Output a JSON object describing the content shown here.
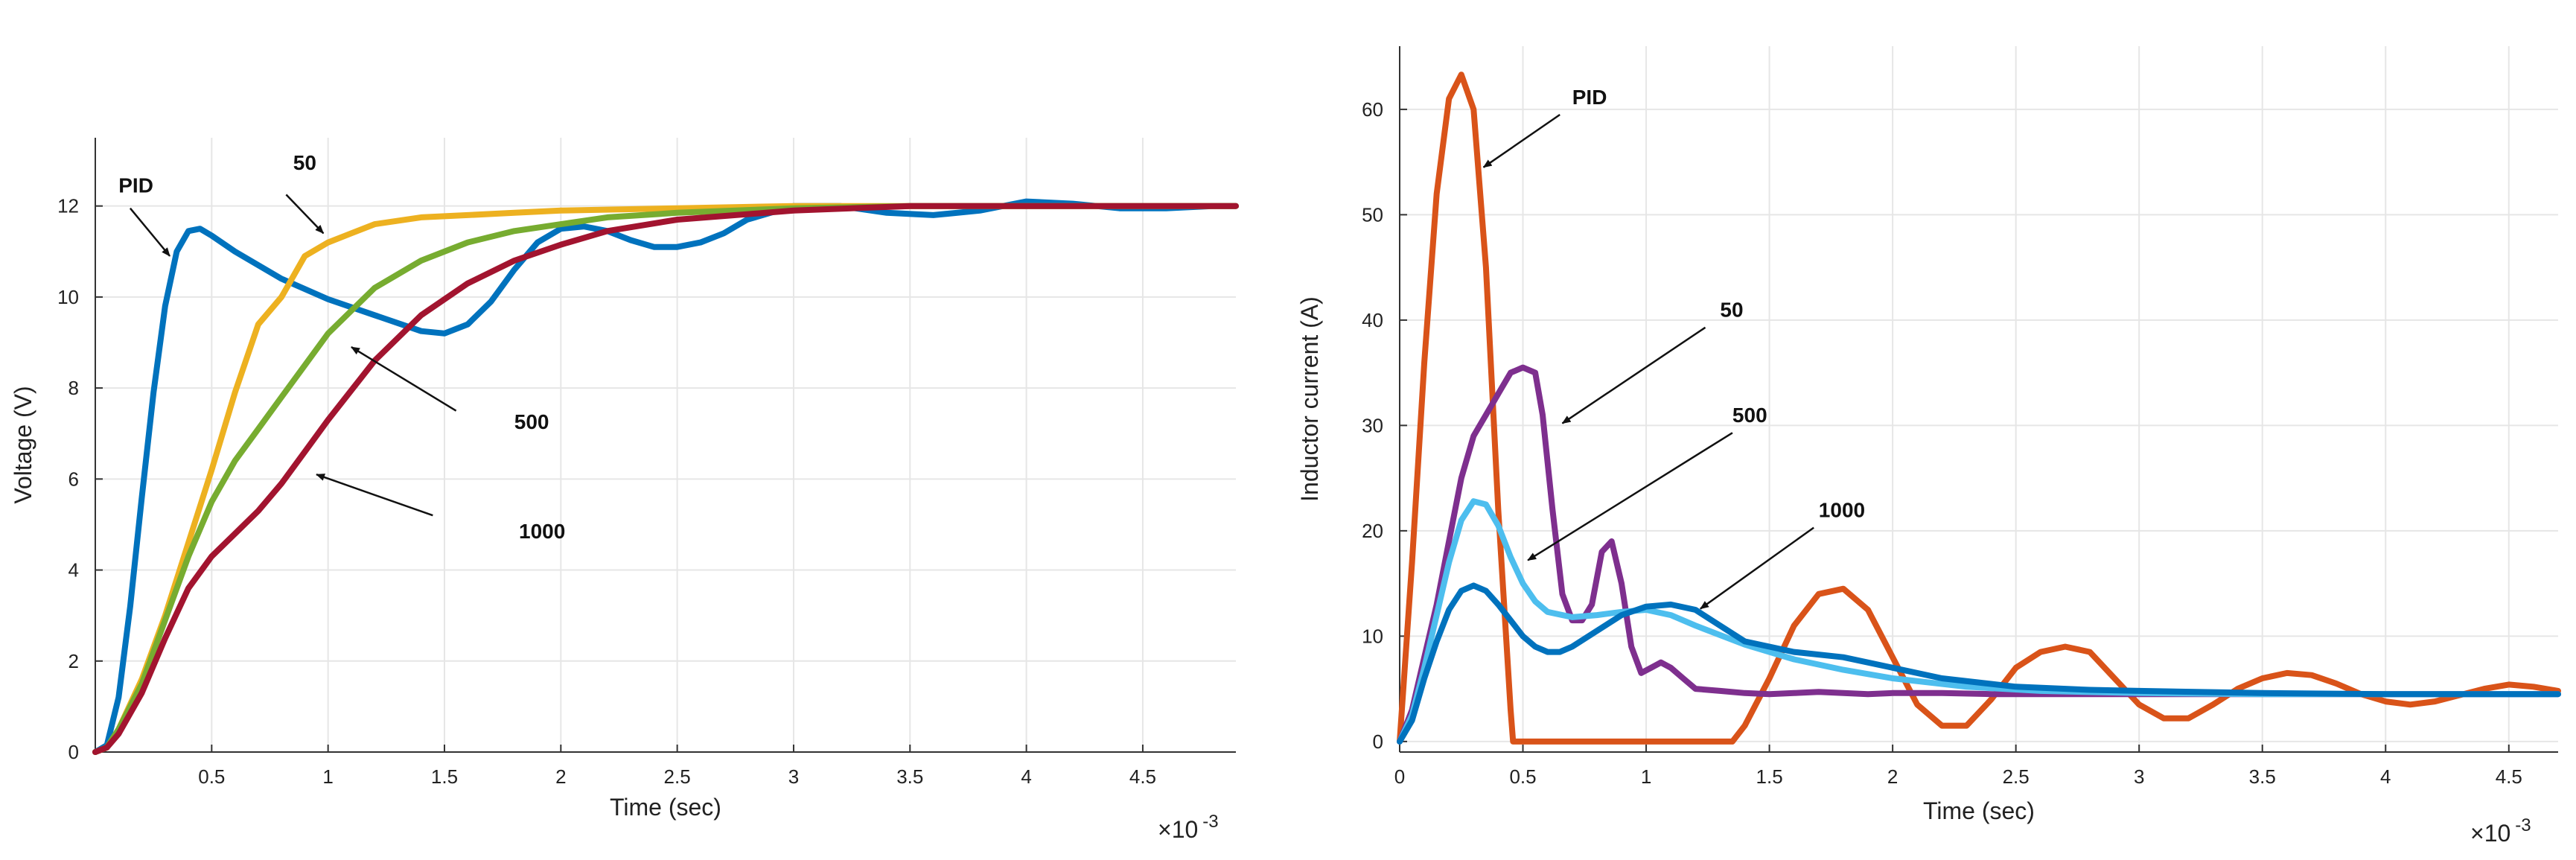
{
  "chart_data": [
    {
      "type": "line",
      "title": "",
      "xlabel": "Time (sec)",
      "ylabel": "Voltage (V)",
      "x_multiplier": "×10 -3",
      "xlim": [
        0,
        4.9
      ],
      "ylim": [
        0,
        13.5
      ],
      "xticks": [
        0.5,
        1,
        1.5,
        2,
        2.5,
        3,
        3.5,
        4,
        4.5
      ],
      "xtick_labels": [
        "0.5",
        "1",
        "1.5",
        "2",
        "2.5",
        "3",
        "3.5",
        "4",
        "4.5"
      ],
      "yticks": [
        0,
        2,
        4,
        6,
        8,
        10,
        12
      ],
      "ytick_labels": [
        "0",
        "2",
        "4",
        "6",
        "8",
        "10",
        "12"
      ],
      "grid": true,
      "series": [
        {
          "name": "PID",
          "color": "#0072BD",
          "x": [
            0,
            0.05,
            0.1,
            0.15,
            0.2,
            0.25,
            0.3,
            0.35,
            0.4,
            0.45,
            0.5,
            0.6,
            0.8,
            1.0,
            1.2,
            1.4,
            1.5,
            1.6,
            1.7,
            1.8,
            1.9,
            2.0,
            2.1,
            2.2,
            2.3,
            2.4,
            2.5,
            2.6,
            2.7,
            2.8,
            3.0,
            3.2,
            3.4,
            3.6,
            3.8,
            4.0,
            4.2,
            4.4,
            4.6,
            4.8,
            4.9
          ],
          "y": [
            0,
            0.15,
            1.2,
            3.2,
            5.6,
            7.9,
            9.8,
            11.0,
            11.45,
            11.5,
            11.35,
            11.0,
            10.4,
            9.95,
            9.6,
            9.25,
            9.2,
            9.4,
            9.9,
            10.6,
            11.2,
            11.5,
            11.55,
            11.45,
            11.25,
            11.1,
            11.1,
            11.2,
            11.4,
            11.7,
            12.0,
            12.0,
            11.85,
            11.8,
            11.9,
            12.1,
            12.05,
            11.95,
            11.95,
            12.0,
            12.0
          ]
        },
        {
          "name": "50",
          "color": "#EDB120",
          "x": [
            0,
            0.05,
            0.1,
            0.2,
            0.3,
            0.4,
            0.5,
            0.6,
            0.7,
            0.8,
            0.9,
            1.0,
            1.1,
            1.2,
            1.4,
            1.6,
            1.8,
            2.0,
            2.5,
            3.0,
            3.5,
            4.0,
            4.5,
            4.9
          ],
          "y": [
            0,
            0.1,
            0.5,
            1.6,
            3.0,
            4.6,
            6.2,
            7.9,
            9.4,
            10.0,
            10.9,
            11.2,
            11.4,
            11.6,
            11.75,
            11.8,
            11.85,
            11.9,
            11.95,
            12.0,
            12.0,
            12.0,
            12.0,
            12.0
          ]
        },
        {
          "name": "500",
          "color": "#77AC30",
          "x": [
            0,
            0.05,
            0.1,
            0.2,
            0.3,
            0.4,
            0.5,
            0.6,
            0.7,
            0.8,
            0.9,
            1.0,
            1.2,
            1.4,
            1.6,
            1.8,
            2.0,
            2.2,
            2.5,
            3.0,
            3.5,
            4.0,
            4.5,
            4.9
          ],
          "y": [
            0,
            0.1,
            0.5,
            1.5,
            2.9,
            4.3,
            5.5,
            6.4,
            7.1,
            7.8,
            8.5,
            9.2,
            10.2,
            10.8,
            11.2,
            11.45,
            11.6,
            11.75,
            11.85,
            11.95,
            12.0,
            12.0,
            12.0,
            12.0
          ]
        },
        {
          "name": "1000",
          "color": "#A2142F",
          "x": [
            0,
            0.05,
            0.1,
            0.2,
            0.3,
            0.4,
            0.5,
            0.6,
            0.7,
            0.8,
            0.9,
            1.0,
            1.2,
            1.4,
            1.6,
            1.8,
            2.0,
            2.2,
            2.5,
            3.0,
            3.5,
            4.0,
            4.5,
            4.9
          ],
          "y": [
            0,
            0.1,
            0.4,
            1.3,
            2.5,
            3.6,
            4.3,
            4.8,
            5.3,
            5.9,
            6.6,
            7.3,
            8.6,
            9.6,
            10.3,
            10.8,
            11.15,
            11.45,
            11.7,
            11.9,
            12.0,
            12.0,
            12.0,
            12.0
          ]
        }
      ],
      "annotations": [
        {
          "text": "PID",
          "x": 0.1,
          "y": 12.3,
          "arrow_to": [
            0.32,
            10.9
          ]
        },
        {
          "text": "50",
          "x": 0.85,
          "y": 12.8,
          "arrow_from": [
            0.82,
            12.25
          ],
          "arrow_to": [
            0.98,
            11.4
          ]
        },
        {
          "text": "500",
          "x": 1.8,
          "y": 7.1,
          "arrow_from": [
            1.55,
            7.5
          ],
          "arrow_to": [
            1.1,
            8.9
          ]
        },
        {
          "text": "1000",
          "x": 1.82,
          "y": 4.7,
          "arrow_from": [
            1.45,
            5.2
          ],
          "arrow_to": [
            0.95,
            6.1
          ]
        }
      ]
    },
    {
      "type": "line",
      "title": "",
      "xlabel": "Time (sec)",
      "ylabel": "Inductor current (A)",
      "x_multiplier": "×10 -3",
      "xlim": [
        0,
        4.7
      ],
      "ylim": [
        -1,
        66
      ],
      "xticks": [
        0,
        0.5,
        1,
        1.5,
        2,
        2.5,
        3,
        3.5,
        4,
        4.5
      ],
      "xtick_labels": [
        "0",
        "0.5",
        "1",
        "1.5",
        "2",
        "2.5",
        "3",
        "3.5",
        "4",
        "4.5"
      ],
      "yticks": [
        0,
        10,
        20,
        30,
        40,
        50,
        60
      ],
      "ytick_labels": [
        "0",
        "10",
        "20",
        "30",
        "40",
        "50",
        "60"
      ],
      "grid": true,
      "series": [
        {
          "name": "PID",
          "color": "#D95319",
          "x": [
            0,
            0.05,
            0.1,
            0.15,
            0.2,
            0.25,
            0.3,
            0.35,
            0.4,
            0.45,
            0.46,
            0.6,
            0.8,
            1.0,
            1.2,
            1.35,
            1.4,
            1.5,
            1.6,
            1.7,
            1.8,
            1.9,
            2.0,
            2.1,
            2.2,
            2.3,
            2.4,
            2.5,
            2.6,
            2.7,
            2.8,
            2.9,
            3.0,
            3.1,
            3.2,
            3.3,
            3.4,
            3.5,
            3.6,
            3.7,
            3.8,
            3.9,
            4.0,
            4.1,
            4.2,
            4.3,
            4.4,
            4.5,
            4.6,
            4.7
          ],
          "y": [
            0,
            17,
            36,
            52,
            61,
            63.3,
            60,
            45,
            22,
            3,
            0,
            0,
            0,
            0,
            0,
            0,
            1.5,
            6,
            11,
            14,
            14.5,
            12.5,
            8,
            3.5,
            1.5,
            1.5,
            4,
            7,
            8.5,
            9,
            8.5,
            6,
            3.5,
            2.2,
            2.2,
            3.5,
            5,
            6,
            6.5,
            6.3,
            5.5,
            4.5,
            3.8,
            3.5,
            3.8,
            4.4,
            5,
            5.4,
            5.2,
            4.8
          ]
        },
        {
          "name": "50",
          "color": "#7E2F8E",
          "x": [
            0,
            0.05,
            0.1,
            0.15,
            0.2,
            0.25,
            0.3,
            0.35,
            0.4,
            0.45,
            0.5,
            0.55,
            0.58,
            0.62,
            0.66,
            0.7,
            0.74,
            0.78,
            0.82,
            0.86,
            0.9,
            0.94,
            0.98,
            1.02,
            1.06,
            1.1,
            1.15,
            1.2,
            1.3,
            1.4,
            1.5,
            1.6,
            1.7,
            1.8,
            1.9,
            2.0,
            2.2,
            2.4,
            2.6,
            2.8,
            3.0,
            3.3,
            3.6,
            3.9,
            4.2,
            4.5,
            4.7
          ],
          "y": [
            0,
            3,
            8,
            13,
            19,
            25,
            29,
            31,
            33,
            35,
            35.5,
            35,
            31,
            22,
            14,
            11.5,
            11.5,
            13,
            18,
            19,
            15,
            9,
            6.5,
            7,
            7.5,
            7,
            6,
            5,
            4.8,
            4.6,
            4.5,
            4.6,
            4.7,
            4.6,
            4.5,
            4.6,
            4.6,
            4.5,
            4.5,
            4.5,
            4.5,
            4.5,
            4.5,
            4.5,
            4.5,
            4.5,
            4.5
          ]
        },
        {
          "name": "500",
          "color": "#4DBEEE",
          "x": [
            0,
            0.05,
            0.1,
            0.15,
            0.2,
            0.25,
            0.3,
            0.35,
            0.4,
            0.45,
            0.5,
            0.55,
            0.6,
            0.7,
            0.8,
            0.9,
            1.0,
            1.1,
            1.2,
            1.4,
            1.6,
            1.8,
            2.0,
            2.3,
            2.6,
            3.0,
            3.5,
            4.0,
            4.5,
            4.7
          ],
          "y": [
            0,
            2.5,
            7,
            12,
            17,
            21,
            22.8,
            22.5,
            20.5,
            17.5,
            15,
            13.3,
            12.3,
            11.8,
            12,
            12.3,
            12.5,
            12,
            11,
            9.2,
            7.8,
            6.8,
            6,
            5.2,
            4.8,
            4.6,
            4.5,
            4.5,
            4.5,
            4.5
          ]
        },
        {
          "name": "1000",
          "color": "#0072BD",
          "x": [
            0,
            0.05,
            0.1,
            0.15,
            0.2,
            0.25,
            0.3,
            0.35,
            0.4,
            0.45,
            0.5,
            0.55,
            0.6,
            0.65,
            0.7,
            0.8,
            0.9,
            1.0,
            1.1,
            1.2,
            1.3,
            1.4,
            1.6,
            1.8,
            2.0,
            2.2,
            2.5,
            2.8,
            3.0,
            3.5,
            4.0,
            4.5,
            4.7
          ],
          "y": [
            0,
            2,
            6,
            9.5,
            12.5,
            14.3,
            14.8,
            14.3,
            13,
            11.5,
            10,
            9,
            8.5,
            8.5,
            9,
            10.5,
            12,
            12.8,
            13,
            12.5,
            11,
            9.5,
            8.5,
            8,
            7,
            6,
            5.2,
            4.9,
            4.8,
            4.6,
            4.5,
            4.5,
            4.5
          ]
        }
      ],
      "annotations": [
        {
          "text": "PID",
          "x": 0.7,
          "y": 60.5,
          "arrow_from": [
            0.65,
            59.5
          ],
          "arrow_to": [
            0.34,
            54.5
          ]
        },
        {
          "text": "50",
          "x": 1.3,
          "y": 40.3,
          "arrow_from": [
            1.24,
            39.3
          ],
          "arrow_to": [
            0.66,
            30.2
          ]
        },
        {
          "text": "500",
          "x": 1.35,
          "y": 30.3,
          "arrow_from": [
            1.35,
            29.3
          ],
          "arrow_to": [
            0.52,
            17.2
          ]
        },
        {
          "text": "1000",
          "x": 1.7,
          "y": 21.3,
          "arrow_from": [
            1.68,
            20.3
          ],
          "arrow_to": [
            1.22,
            12.6
          ]
        }
      ]
    }
  ]
}
